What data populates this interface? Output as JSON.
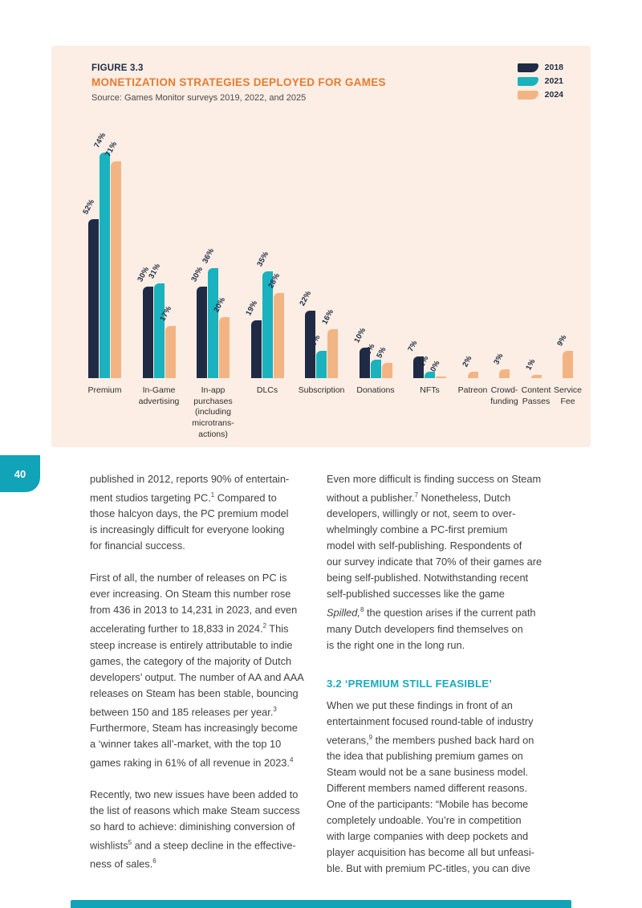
{
  "page": {
    "number": "40"
  },
  "figure": {
    "label": "FIGURE 3.3",
    "title": "MONETIZATION STRATEGIES DEPLOYED FOR GAMES",
    "source": "Source: Games Monitor surveys 2019, 2022, and 2025",
    "colors": {
      "panel_bg": "#fceee4",
      "title": "#e87a2e",
      "accent_teal": "#11a3b7"
    }
  },
  "chart_data": {
    "type": "bar",
    "title": "MONETIZATION STRATEGIES DEPLOYED FOR GAMES",
    "categories": [
      "Premium",
      "In-Game\nadvertising",
      "In-app\npurchases\n(including\nmicrotrans-\nactions)",
      "DLCs",
      "Subscription",
      "Donations",
      "NFTs",
      "Patreon",
      "Crowd-\nfunding",
      "Content\nPasses",
      "Service\nFee"
    ],
    "series": [
      {
        "name": "2018",
        "color": "#1f2b45",
        "values": [
          52,
          30,
          30,
          19,
          22,
          10,
          7,
          null,
          null,
          null,
          null
        ]
      },
      {
        "name": "2021",
        "color": "#1ab2be",
        "values": [
          74,
          31,
          36,
          35,
          9,
          6,
          2,
          null,
          null,
          null,
          null
        ]
      },
      {
        "name": "2024",
        "color": "#f3b483",
        "values": [
          71,
          17,
          20,
          28,
          16,
          5,
          0,
          2,
          3,
          1,
          9
        ]
      }
    ],
    "value_suffix": "%",
    "ylim": [
      0,
      80
    ],
    "grid": false,
    "legend_position": "top-right",
    "value_labels": true
  },
  "columns": {
    "left": {
      "paragraphs": [
        [
          {
            "t": "published in 2012, reports 90% of entertain-\nment studios targeting PC."
          },
          {
            "t": "1",
            "sup": true
          },
          {
            "t": " Compared to\nthose halcyon days, the PC premium model\nis increasingly difficult for everyone looking\nfor financial success."
          }
        ],
        [
          {
            "t": "First of all, the number of releases on PC is\never increasing. On Steam this number rose\nfrom 436 in 2013 to 14,231 in 2023, and even\naccelerating further to 18,833 in 2024."
          },
          {
            "t": "2",
            "sup": true
          },
          {
            "t": " This\nsteep increase is entirely attributable to indie\ngames, the category of the majority of Dutch\ndevelopers’ output. The number of AA and AAA\nreleases on Steam has been stable, bouncing\nbetween 150 and 185 releases per year."
          },
          {
            "t": "3",
            "sup": true
          },
          {
            "t": "\nFurthermore, Steam has increasingly become\na ‘winner takes all’-market, with the top 10\ngames raking in 61% of all revenue in 2023."
          },
          {
            "t": "4",
            "sup": true
          }
        ],
        [
          {
            "t": "Recently, two new issues have been added to\nthe list of reasons which make Steam success\nso hard to achieve: diminishing conversion of\nwishlists"
          },
          {
            "t": "5",
            "sup": true
          },
          {
            "t": " and a steep decline in the effective-\nness of sales."
          },
          {
            "t": "6",
            "sup": true
          }
        ]
      ]
    },
    "right": {
      "blocks": [
        {
          "type": "p",
          "runs": [
            {
              "t": "Even more difficult is finding success on Steam\nwithout a publisher."
            },
            {
              "t": "7",
              "sup": true
            },
            {
              "t": " Nonetheless, Dutch\ndevelopers, willingly or not, seem to over-\nwhelmingly combine a PC-first premium\nmodel with self-publishing. Respondents of\nour survey indicate that 70% of their games are\nbeing self-published. Notwithstanding recent\nself-published successes like the game\n"
            },
            {
              "t": "Spilled,",
              "i": true
            },
            {
              "t": "8",
              "sup": true
            },
            {
              "t": " the question arises if the current path\nmany Dutch developers find themselves on\nis the right one in the long run."
            }
          ]
        },
        {
          "type": "heading",
          "text": "3.2 ‘PREMIUM STILL FEASIBLE’"
        },
        {
          "type": "p",
          "runs": [
            {
              "t": "When we put these findings in front of an\nentertainment focused round-table of industry\nveterans,"
            },
            {
              "t": "9",
              "sup": true
            },
            {
              "t": " the members pushed back hard on\nthe idea that publishing premium games on\nSteam would not be a sane business model.\nDifferent members named different reasons.\nOne of the participants: “Mobile has become\ncompletely undoable. You’re in competition\nwith large companies with deep pockets and\nplayer acquisition has become all but unfeasi-\nble. But with premium PC-titles, you can dive"
            }
          ]
        }
      ]
    }
  }
}
